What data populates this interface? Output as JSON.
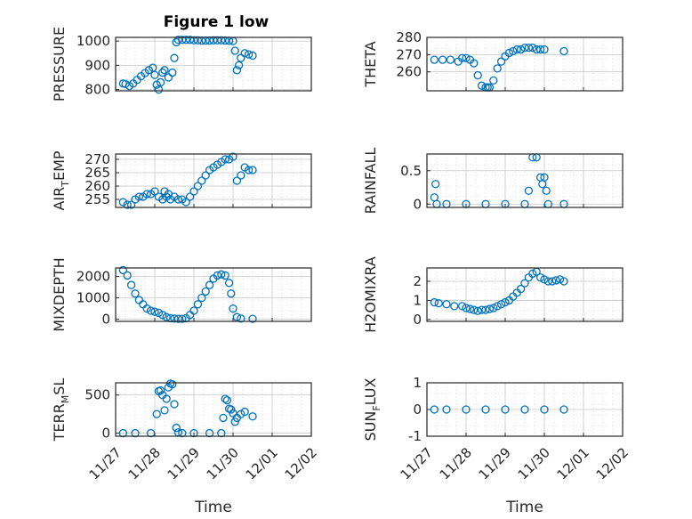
{
  "figure_title": "Figure 1 low",
  "colors": {
    "marker": "#0072BD",
    "axis": "#262626",
    "grid": "#c8c8c8"
  },
  "chart_data": [
    {
      "type": "scatter",
      "ylabel_main": "PRESSURE",
      "ylim": [
        795,
        1015
      ],
      "yticks": [
        800,
        900,
        1000
      ],
      "xlabel": "",
      "points": [
        [
          0.19,
          825
        ],
        [
          0.25,
          823
        ],
        [
          0.35,
          815
        ],
        [
          0.45,
          825
        ],
        [
          0.55,
          840
        ],
        [
          0.65,
          855
        ],
        [
          0.75,
          868
        ],
        [
          0.85,
          880
        ],
        [
          0.95,
          890
        ],
        [
          1.0,
          860
        ],
        [
          1.05,
          820
        ],
        [
          1.1,
          800
        ],
        [
          1.15,
          830
        ],
        [
          1.2,
          870
        ],
        [
          1.25,
          880
        ],
        [
          1.35,
          850
        ],
        [
          1.45,
          870
        ],
        [
          1.5,
          930
        ],
        [
          1.55,
          995
        ],
        [
          1.6,
          1005
        ],
        [
          1.7,
          1005
        ],
        [
          1.8,
          1005
        ],
        [
          1.9,
          1005
        ],
        [
          2.0,
          1003
        ],
        [
          2.1,
          1003
        ],
        [
          2.2,
          1002
        ],
        [
          2.3,
          1002
        ],
        [
          2.4,
          1002
        ],
        [
          2.5,
          1003
        ],
        [
          2.6,
          1003
        ],
        [
          2.7,
          1003
        ],
        [
          2.8,
          1002
        ],
        [
          2.9,
          1001
        ],
        [
          3.0,
          1000
        ],
        [
          3.05,
          960
        ],
        [
          3.1,
          880
        ],
        [
          3.15,
          900
        ],
        [
          3.2,
          930
        ],
        [
          3.3,
          950
        ],
        [
          3.4,
          945
        ],
        [
          3.5,
          940
        ]
      ]
    },
    {
      "type": "scatter",
      "ylabel_main": "THETA",
      "ylim": [
        249,
        280
      ],
      "yticks": [
        260,
        270,
        280
      ],
      "xlabel": "",
      "points": [
        [
          0.19,
          267
        ],
        [
          0.4,
          267
        ],
        [
          0.6,
          267
        ],
        [
          0.8,
          266
        ],
        [
          0.9,
          268
        ],
        [
          1.0,
          268
        ],
        [
          1.1,
          267
        ],
        [
          1.2,
          265
        ],
        [
          1.3,
          258
        ],
        [
          1.4,
          252
        ],
        [
          1.5,
          251
        ],
        [
          1.55,
          251
        ],
        [
          1.6,
          251
        ],
        [
          1.7,
          255
        ],
        [
          1.8,
          262
        ],
        [
          1.9,
          266
        ],
        [
          2.0,
          269
        ],
        [
          2.1,
          271
        ],
        [
          2.2,
          272
        ],
        [
          2.3,
          273
        ],
        [
          2.4,
          273
        ],
        [
          2.5,
          274
        ],
        [
          2.6,
          274
        ],
        [
          2.7,
          274
        ],
        [
          2.8,
          273
        ],
        [
          2.9,
          273
        ],
        [
          3.0,
          273
        ],
        [
          3.5,
          272
        ]
      ]
    },
    {
      "type": "scatter",
      "ylabel_main": "AIR",
      "ylabel_sub": "T",
      "ylabel_rest": "EMP",
      "ylim": [
        252,
        272
      ],
      "yticks": [
        255,
        260,
        265,
        270
      ],
      "xlabel": "",
      "points": [
        [
          0.19,
          254
        ],
        [
          0.3,
          253
        ],
        [
          0.4,
          253
        ],
        [
          0.5,
          255
        ],
        [
          0.6,
          256
        ],
        [
          0.7,
          256
        ],
        [
          0.8,
          257
        ],
        [
          0.9,
          257
        ],
        [
          1.0,
          258
        ],
        [
          1.1,
          256
        ],
        [
          1.2,
          255
        ],
        [
          1.25,
          258
        ],
        [
          1.3,
          256
        ],
        [
          1.35,
          257
        ],
        [
          1.4,
          255
        ],
        [
          1.5,
          256
        ],
        [
          1.6,
          255
        ],
        [
          1.7,
          255
        ],
        [
          1.8,
          254
        ],
        [
          1.9,
          256
        ],
        [
          2.0,
          258
        ],
        [
          2.1,
          260
        ],
        [
          2.2,
          262
        ],
        [
          2.3,
          264
        ],
        [
          2.4,
          266
        ],
        [
          2.5,
          267
        ],
        [
          2.6,
          268
        ],
        [
          2.7,
          269
        ],
        [
          2.8,
          270
        ],
        [
          2.9,
          270
        ],
        [
          3.0,
          271
        ],
        [
          3.1,
          262
        ],
        [
          3.2,
          264
        ],
        [
          3.3,
          267
        ],
        [
          3.4,
          266
        ],
        [
          3.5,
          266
        ]
      ]
    },
    {
      "type": "scatter",
      "ylabel_main": "RAINFALL",
      "ylim": [
        -0.05,
        0.75
      ],
      "yticks": [
        0,
        0.5
      ],
      "xlabel": "",
      "points": [
        [
          0.19,
          0.1
        ],
        [
          0.22,
          0.3
        ],
        [
          0.25,
          0.0
        ],
        [
          0.5,
          0.0
        ],
        [
          1.0,
          0.0
        ],
        [
          1.5,
          0.0
        ],
        [
          2.0,
          0.0
        ],
        [
          2.5,
          0.0
        ],
        [
          2.6,
          0.2
        ],
        [
          2.7,
          0.7
        ],
        [
          2.8,
          0.7
        ],
        [
          2.9,
          0.4
        ],
        [
          2.95,
          0.3
        ],
        [
          3.0,
          0.4
        ],
        [
          3.05,
          0.2
        ],
        [
          3.1,
          0.0
        ],
        [
          3.5,
          0.0
        ]
      ]
    },
    {
      "type": "scatter",
      "ylabel_main": "MIXDEPTH",
      "ylim": [
        -100,
        2400
      ],
      "yticks": [
        0,
        1000,
        2000
      ],
      "xlabel": "",
      "points": [
        [
          0.19,
          2300
        ],
        [
          0.3,
          2050
        ],
        [
          0.4,
          1600
        ],
        [
          0.5,
          1200
        ],
        [
          0.6,
          900
        ],
        [
          0.7,
          700
        ],
        [
          0.8,
          500
        ],
        [
          0.9,
          400
        ],
        [
          1.0,
          350
        ],
        [
          1.1,
          300
        ],
        [
          1.2,
          200
        ],
        [
          1.3,
          100
        ],
        [
          1.4,
          50
        ],
        [
          1.5,
          30
        ],
        [
          1.6,
          20
        ],
        [
          1.7,
          20
        ],
        [
          1.8,
          50
        ],
        [
          1.9,
          200
        ],
        [
          2.0,
          400
        ],
        [
          2.1,
          700
        ],
        [
          2.2,
          1000
        ],
        [
          2.3,
          1300
        ],
        [
          2.4,
          1600
        ],
        [
          2.5,
          1900
        ],
        [
          2.6,
          2050
        ],
        [
          2.7,
          2100
        ],
        [
          2.8,
          2050
        ],
        [
          2.9,
          1700
        ],
        [
          2.95,
          1200
        ],
        [
          3.0,
          500
        ],
        [
          3.1,
          100
        ],
        [
          3.2,
          30
        ],
        [
          3.5,
          20
        ]
      ]
    },
    {
      "type": "scatter",
      "ylabel_main": "H2OMIXRA",
      "ylim": [
        -0.1,
        2.7
      ],
      "yticks": [
        0,
        1,
        2
      ],
      "xlabel": "",
      "points": [
        [
          0.19,
          0.9
        ],
        [
          0.3,
          0.85
        ],
        [
          0.5,
          0.8
        ],
        [
          0.7,
          0.7
        ],
        [
          0.9,
          0.7
        ],
        [
          1.0,
          0.6
        ],
        [
          1.1,
          0.55
        ],
        [
          1.2,
          0.5
        ],
        [
          1.3,
          0.45
        ],
        [
          1.4,
          0.5
        ],
        [
          1.5,
          0.5
        ],
        [
          1.6,
          0.55
        ],
        [
          1.7,
          0.6
        ],
        [
          1.8,
          0.7
        ],
        [
          1.9,
          0.8
        ],
        [
          2.0,
          0.9
        ],
        [
          2.1,
          1.0
        ],
        [
          2.2,
          1.2
        ],
        [
          2.3,
          1.4
        ],
        [
          2.4,
          1.6
        ],
        [
          2.5,
          1.9
        ],
        [
          2.6,
          2.2
        ],
        [
          2.7,
          2.4
        ],
        [
          2.8,
          2.5
        ],
        [
          2.9,
          2.2
        ],
        [
          3.0,
          2.1
        ],
        [
          3.1,
          2.0
        ],
        [
          3.2,
          2.0
        ],
        [
          3.3,
          2.05
        ],
        [
          3.4,
          2.1
        ],
        [
          3.5,
          2.0
        ]
      ]
    },
    {
      "type": "scatter",
      "ylabel_main": "TERR",
      "ylabel_sub": "M",
      "ylabel_rest": "SL",
      "ylim": [
        -40,
        660
      ],
      "yticks": [
        0,
        500
      ],
      "xlabel": "Time",
      "xticklabels": [
        "11/27",
        "11/28",
        "11/29",
        "11/30",
        "12/01",
        "12/02"
      ],
      "points": [
        [
          0.19,
          0
        ],
        [
          0.5,
          0
        ],
        [
          0.9,
          0
        ],
        [
          1.05,
          250
        ],
        [
          1.1,
          550
        ],
        [
          1.15,
          560
        ],
        [
          1.2,
          500
        ],
        [
          1.25,
          300
        ],
        [
          1.3,
          450
        ],
        [
          1.35,
          600
        ],
        [
          1.4,
          650
        ],
        [
          1.45,
          640
        ],
        [
          1.5,
          380
        ],
        [
          1.55,
          70
        ],
        [
          1.6,
          10
        ],
        [
          1.7,
          0
        ],
        [
          2.0,
          0
        ],
        [
          2.4,
          0
        ],
        [
          2.7,
          0
        ],
        [
          2.75,
          200
        ],
        [
          2.8,
          450
        ],
        [
          2.85,
          430
        ],
        [
          2.9,
          320
        ],
        [
          2.95,
          310
        ],
        [
          3.0,
          260
        ],
        [
          3.05,
          150
        ],
        [
          3.1,
          200
        ],
        [
          3.2,
          250
        ],
        [
          3.3,
          280
        ],
        [
          3.5,
          220
        ]
      ]
    },
    {
      "type": "scatter",
      "ylabel_main": "SUN",
      "ylabel_sub": "F",
      "ylabel_rest": "LUX",
      "ylim": [
        -1,
        1
      ],
      "yticks": [
        -1,
        0,
        1
      ],
      "xlabel": "Time",
      "xticklabels": [
        "11/27",
        "11/28",
        "11/29",
        "11/30",
        "12/01",
        "12/02"
      ],
      "points": [
        [
          0.19,
          0
        ],
        [
          0.5,
          0
        ],
        [
          1.0,
          0
        ],
        [
          1.5,
          0
        ],
        [
          2.0,
          0
        ],
        [
          2.5,
          0
        ],
        [
          3.0,
          0
        ],
        [
          3.5,
          0
        ]
      ]
    }
  ],
  "x_domain": [
    0,
    5
  ]
}
